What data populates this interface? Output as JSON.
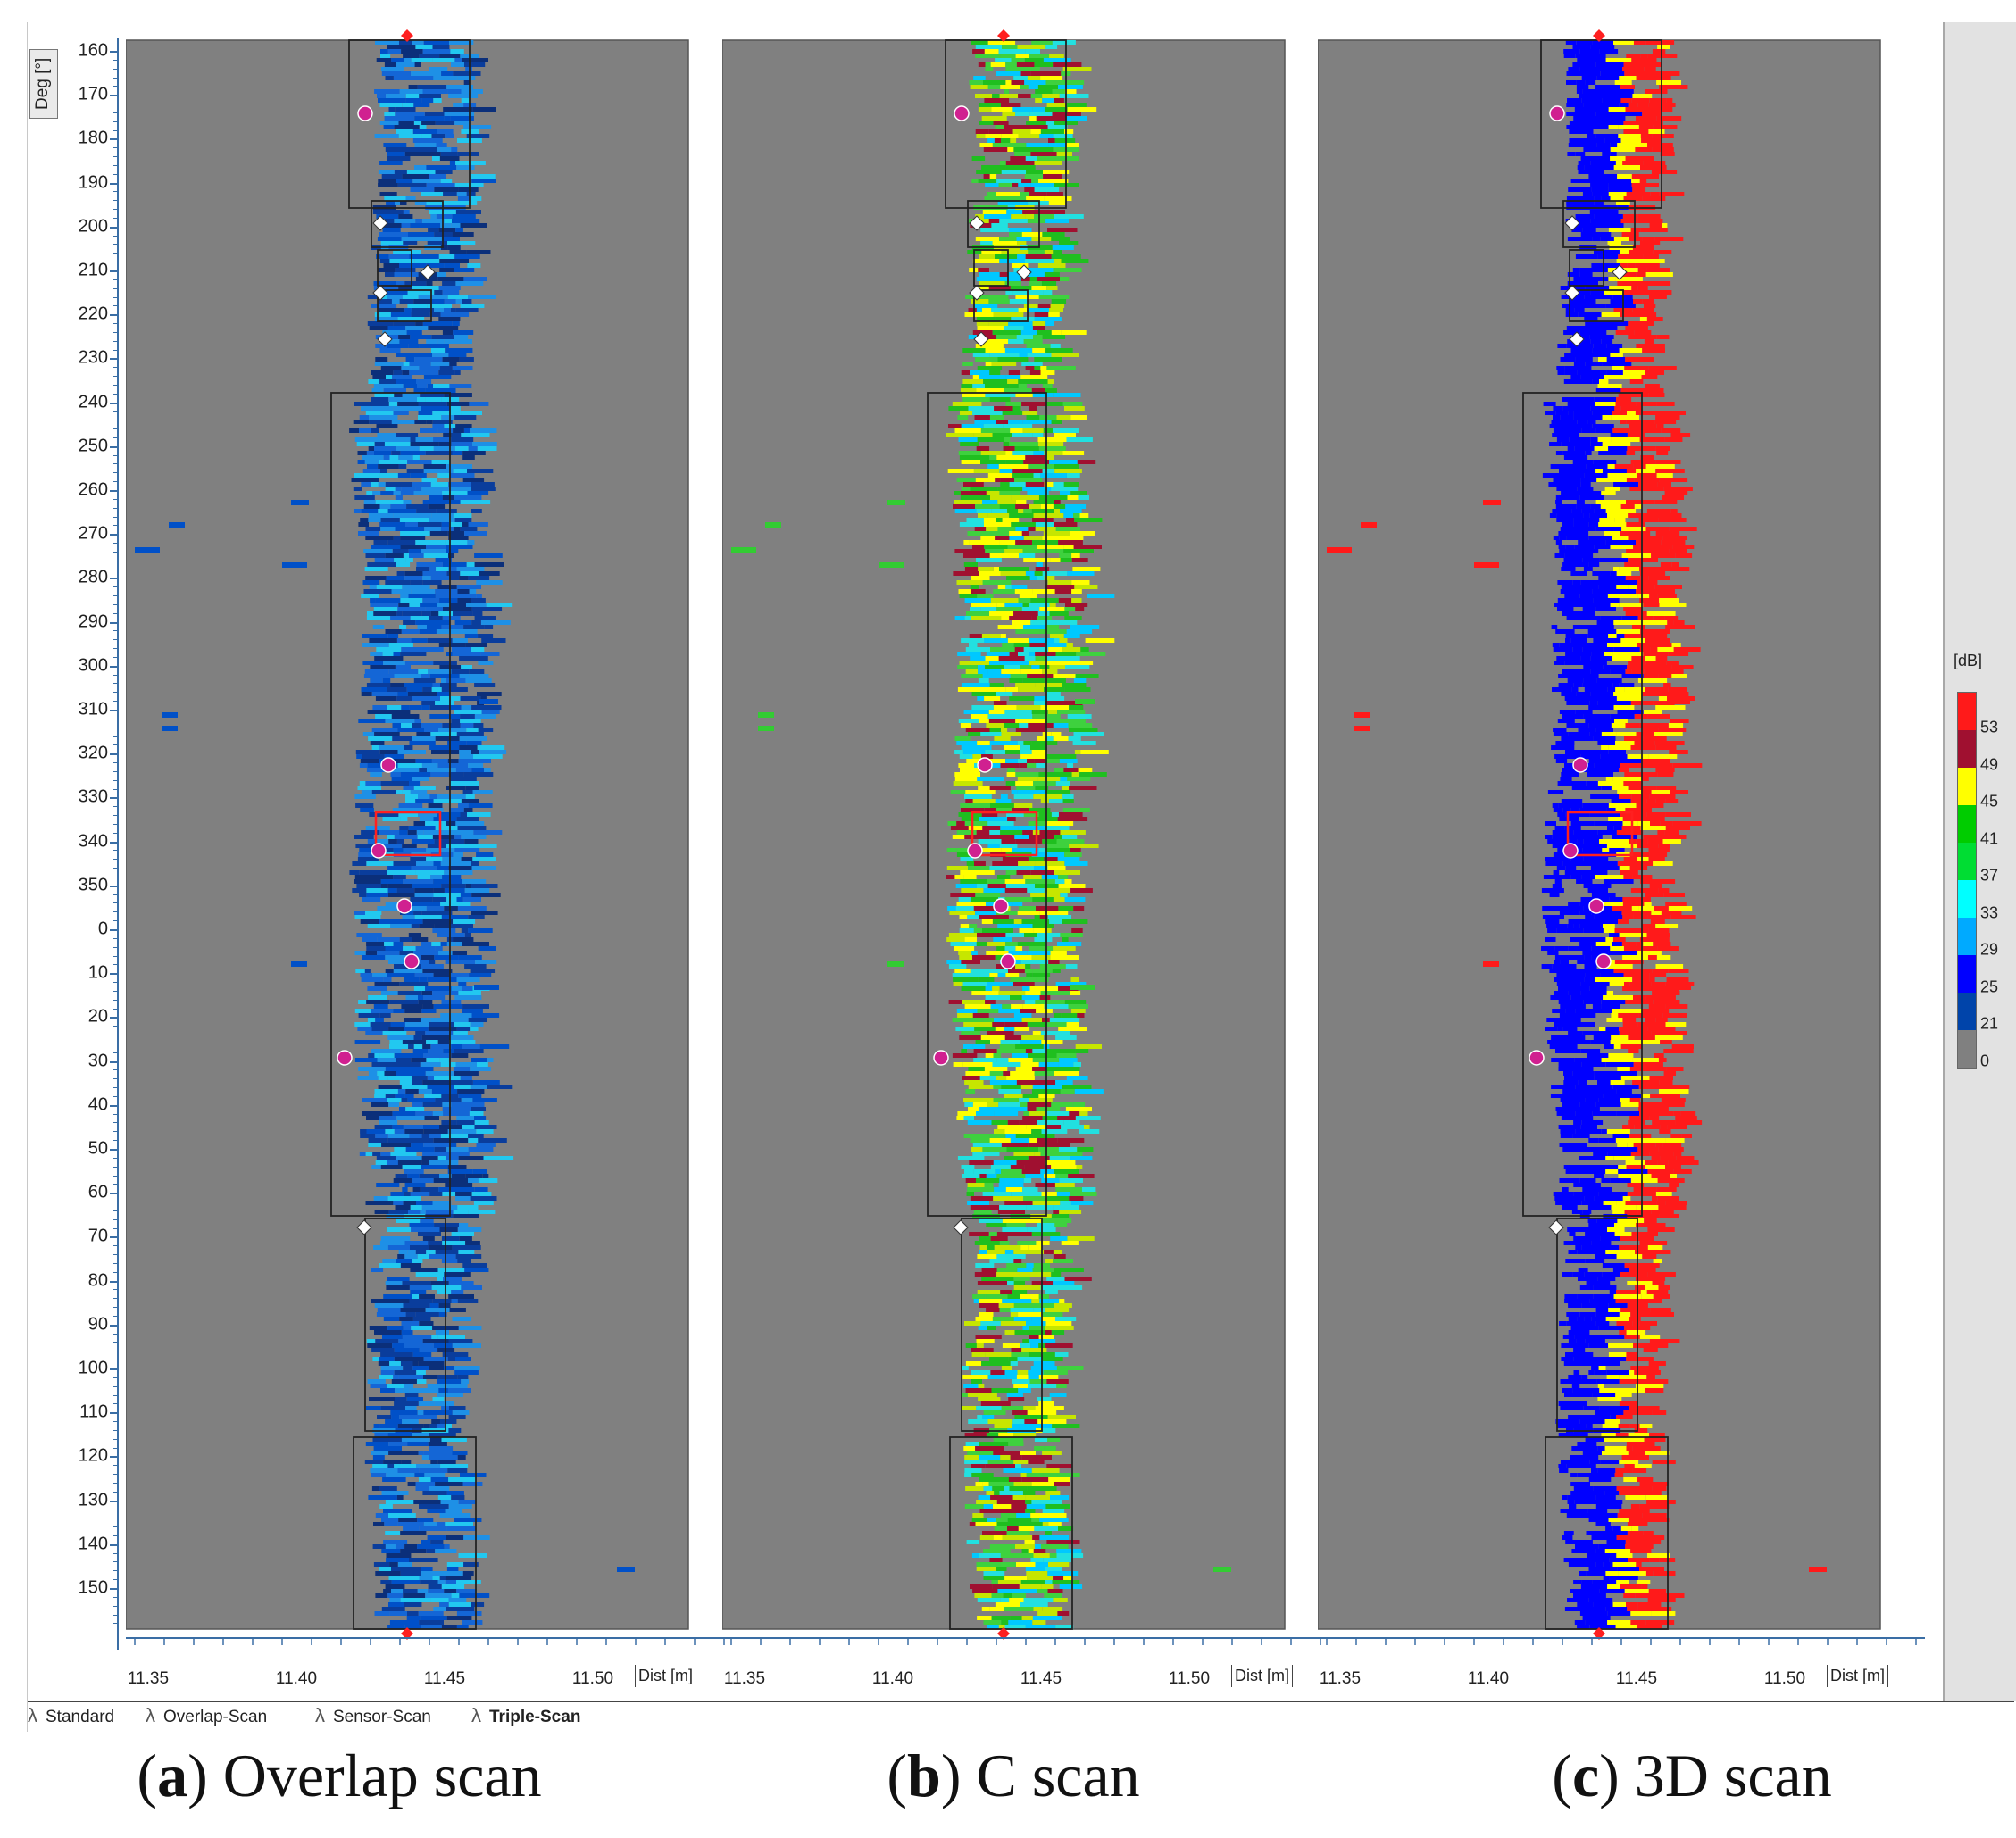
{
  "window": {
    "y_axis_unit": "Deg [°]",
    "y_ticks": [
      "160",
      "170",
      "180",
      "190",
      "200",
      "210",
      "220",
      "230",
      "240",
      "250",
      "260",
      "270",
      "280",
      "290",
      "300",
      "310",
      "320",
      "330",
      "340",
      "350",
      "0",
      "10",
      "20",
      "30",
      "40",
      "50",
      "60",
      "70",
      "80",
      "90",
      "100",
      "110",
      "120",
      "130",
      "140",
      "150"
    ],
    "x_ticks": [
      "11.35",
      "11.40",
      "11.45",
      "11.50"
    ],
    "x_unit": "Dist [m]"
  },
  "legend": {
    "unit": "[dB]",
    "levels": [
      "53",
      "49",
      "45",
      "41",
      "37",
      "33",
      "29",
      "25",
      "21",
      "0"
    ],
    "colors": [
      "#ff1a1a",
      "#a01030",
      "#ffff00",
      "#00cc00",
      "#00dd33",
      "#00ffff",
      "#00aaff",
      "#0000ff",
      "#0044aa",
      "#808080"
    ]
  },
  "tabs": [
    {
      "label": "Standard",
      "active": false
    },
    {
      "label": "Overlap-Scan",
      "active": false
    },
    {
      "label": "Sensor-Scan",
      "active": false
    },
    {
      "label": "Triple-Scan",
      "active": true
    }
  ],
  "panels": [
    {
      "id": "overlap",
      "caption_letter": "a",
      "caption_text": "Overlap scan",
      "palette": [
        "#0b2f7a",
        "#0a3d9c",
        "#0050c8",
        "#1466d6",
        "#1e90e6",
        "#22c8f0"
      ]
    },
    {
      "id": "cscan",
      "caption_letter": "b",
      "caption_text": "C scan",
      "palette": [
        "#1fbf1f",
        "#3ed13e",
        "#00c8ff",
        "#22e0e0",
        "#c6e600",
        "#ffff00",
        "#a01030"
      ]
    },
    {
      "id": "threed",
      "caption_letter": "c",
      "caption_text": "3D scan",
      "palette": [
        "#0000ff",
        "#0000ff",
        "#ffff00",
        "#ff1a1a",
        "#ff1a1a",
        "#0000cc"
      ]
    }
  ],
  "colors": {
    "plot_background": "#808080",
    "region_border": "#222222",
    "highlight_border": "#ff2020",
    "marker_magenta": "#d02090",
    "marker_white": "#ffffff",
    "axis_blue": "#3a6ea5"
  }
}
